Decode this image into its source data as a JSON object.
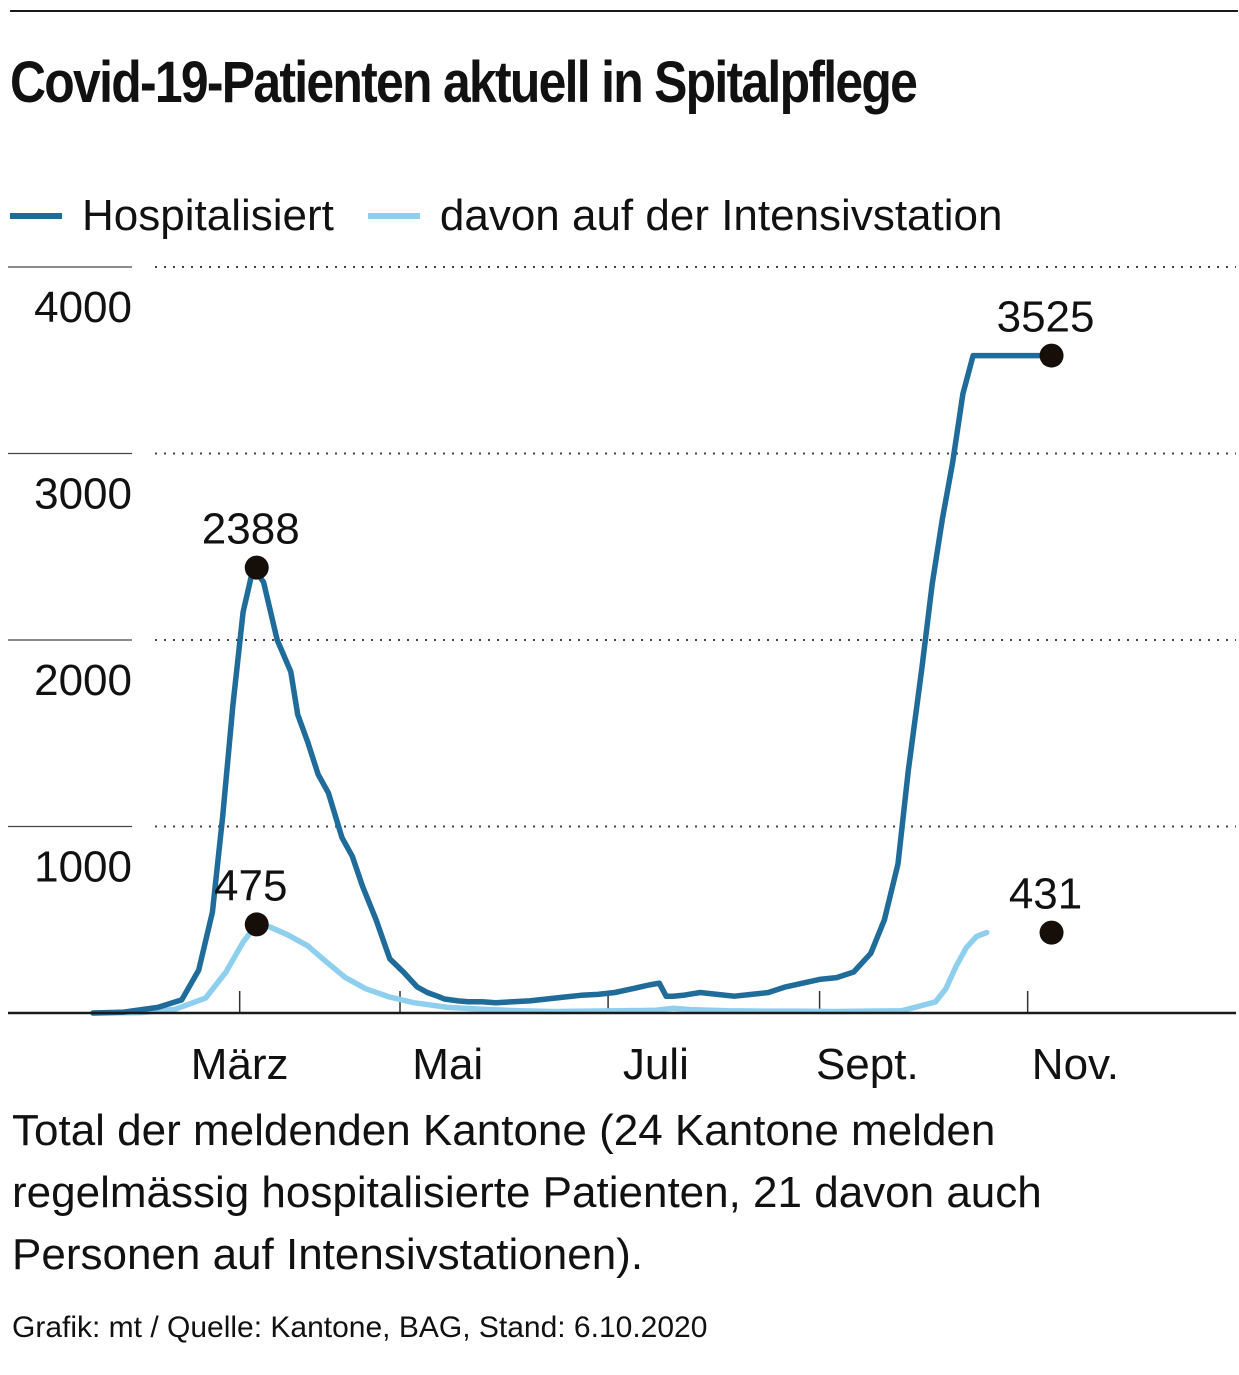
{
  "title": "Covid-19-Patienten aktuell in Spitalpflege",
  "caption": "Total der meldenden Kantone (24 Kantone melden regelmässig hospitalisierte Patienten, 21 davon auch Personen auf Intensivstationen).",
  "source": "Grafik: mt / Quelle: Kantone, BAG, Stand: 6.10.2020",
  "chart_data": {
    "type": "line",
    "title": "Covid-19-Patienten aktuell in Spitalpflege",
    "xlabel": "",
    "ylabel": "",
    "ylim": [
      0,
      4000
    ],
    "yticks": [
      1000,
      2000,
      3000,
      4000
    ],
    "ytick_labels": [
      "1000",
      "2000",
      "3000",
      "4000"
    ],
    "xlim": [
      "2020-02-01",
      "2020-12-01"
    ],
    "xticks": [
      {
        "label": "März",
        "date": "2020-03-15",
        "tick": "2020-03-15"
      },
      {
        "label": "Mai",
        "date": "2020-05-15",
        "tick": "2020-05-01"
      },
      {
        "label": "Juli",
        "date": "2020-07-15",
        "tick": "2020-07-01"
      },
      {
        "label": "Sept.",
        "date": "2020-09-15",
        "tick": "2020-09-01"
      },
      {
        "label": "Nov.",
        "date": "2020-11-15",
        "tick": "2020-11-01"
      }
    ],
    "grid": true,
    "legend_position": "top",
    "series": [
      {
        "name": "Hospitalisiert",
        "color": "#1f6b9a",
        "x": [
          "2020-02-01",
          "2020-02-10",
          "2020-02-20",
          "2020-02-27",
          "2020-03-03",
          "2020-03-07",
          "2020-03-10",
          "2020-03-13",
          "2020-03-16",
          "2020-03-19",
          "2020-03-22",
          "2020-03-26",
          "2020-03-30",
          "2020-04-01",
          "2020-04-04",
          "2020-04-07",
          "2020-04-10",
          "2020-04-14",
          "2020-04-17",
          "2020-04-20",
          "2020-04-24",
          "2020-04-28",
          "2020-05-02",
          "2020-05-06",
          "2020-05-09",
          "2020-05-12",
          "2020-05-14",
          "2020-05-18",
          "2020-05-21",
          "2020-05-25",
          "2020-05-29",
          "2020-06-03",
          "2020-06-08",
          "2020-06-13",
          "2020-06-18",
          "2020-06-23",
          "2020-06-28",
          "2020-07-03",
          "2020-07-08",
          "2020-07-13",
          "2020-07-16",
          "2020-07-18",
          "2020-07-20",
          "2020-07-23",
          "2020-07-28",
          "2020-08-02",
          "2020-08-07",
          "2020-08-12",
          "2020-08-17",
          "2020-08-22",
          "2020-08-27",
          "2020-09-01",
          "2020-09-06",
          "2020-09-11",
          "2020-09-16",
          "2020-09-20",
          "2020-09-24",
          "2020-09-27",
          "2020-10-01",
          "2020-10-04",
          "2020-10-07",
          "2020-10-10",
          "2020-10-13",
          "2020-10-16",
          "2020-10-19",
          "2020-10-22",
          "2020-10-25",
          "2020-10-28",
          "2020-10-31",
          "2020-11-03",
          "2020-11-06"
        ],
        "y": [
          0,
          5,
          30,
          70,
          230,
          540,
          1050,
          1650,
          2150,
          2388,
          2310,
          2000,
          1830,
          1600,
          1450,
          1280,
          1180,
          940,
          840,
          680,
          500,
          290,
          220,
          140,
          110,
          90,
          75,
          65,
          60,
          60,
          55,
          60,
          65,
          75,
          85,
          95,
          100,
          110,
          130,
          150,
          160,
          90,
          90,
          95,
          110,
          100,
          90,
          100,
          110,
          140,
          160,
          180,
          190,
          220,
          320,
          500,
          800,
          1300,
          1850,
          2300,
          2650,
          2950,
          3320,
          3525,
          3525,
          3525,
          3525,
          3525,
          3525,
          3525,
          3525
        ]
      },
      {
        "name": "davon auf der Intensivstation",
        "color": "#8ecfee",
        "x": [
          "2020-02-01",
          "2020-02-15",
          "2020-02-25",
          "2020-03-05",
          "2020-03-11",
          "2020-03-16",
          "2020-03-20",
          "2020-03-24",
          "2020-03-29",
          "2020-04-04",
          "2020-04-09",
          "2020-04-15",
          "2020-04-21",
          "2020-04-28",
          "2020-05-05",
          "2020-05-15",
          "2020-05-25",
          "2020-06-05",
          "2020-06-15",
          "2020-06-25",
          "2020-07-05",
          "2020-07-15",
          "2020-07-20",
          "2020-07-25",
          "2020-08-05",
          "2020-08-15",
          "2020-08-25",
          "2020-09-05",
          "2020-09-15",
          "2020-09-25",
          "2020-10-01",
          "2020-10-05",
          "2020-10-08",
          "2020-10-11",
          "2020-10-14",
          "2020-10-17",
          "2020-10-20"
        ],
        "y": [
          0,
          2,
          20,
          80,
          220,
          380,
          475,
          460,
          420,
          360,
          280,
          190,
          130,
          85,
          55,
          30,
          20,
          12,
          8,
          10,
          12,
          15,
          25,
          18,
          12,
          10,
          10,
          8,
          10,
          12,
          40,
          60,
          130,
          250,
          350,
          410,
          431
        ]
      }
    ],
    "annotations": [
      {
        "text": "2388",
        "series": "Hospitalisiert",
        "x": "2020-03-20",
        "y": 2388
      },
      {
        "text": "3525",
        "series": "Hospitalisiert",
        "x": "2020-11-08",
        "y": 3525
      },
      {
        "text": "475",
        "series": "davon auf der Intensivstation",
        "x": "2020-03-20",
        "y": 475
      },
      {
        "text": "431",
        "series": "davon auf der Intensivstation",
        "x": "2020-11-08",
        "y": 431
      }
    ]
  }
}
